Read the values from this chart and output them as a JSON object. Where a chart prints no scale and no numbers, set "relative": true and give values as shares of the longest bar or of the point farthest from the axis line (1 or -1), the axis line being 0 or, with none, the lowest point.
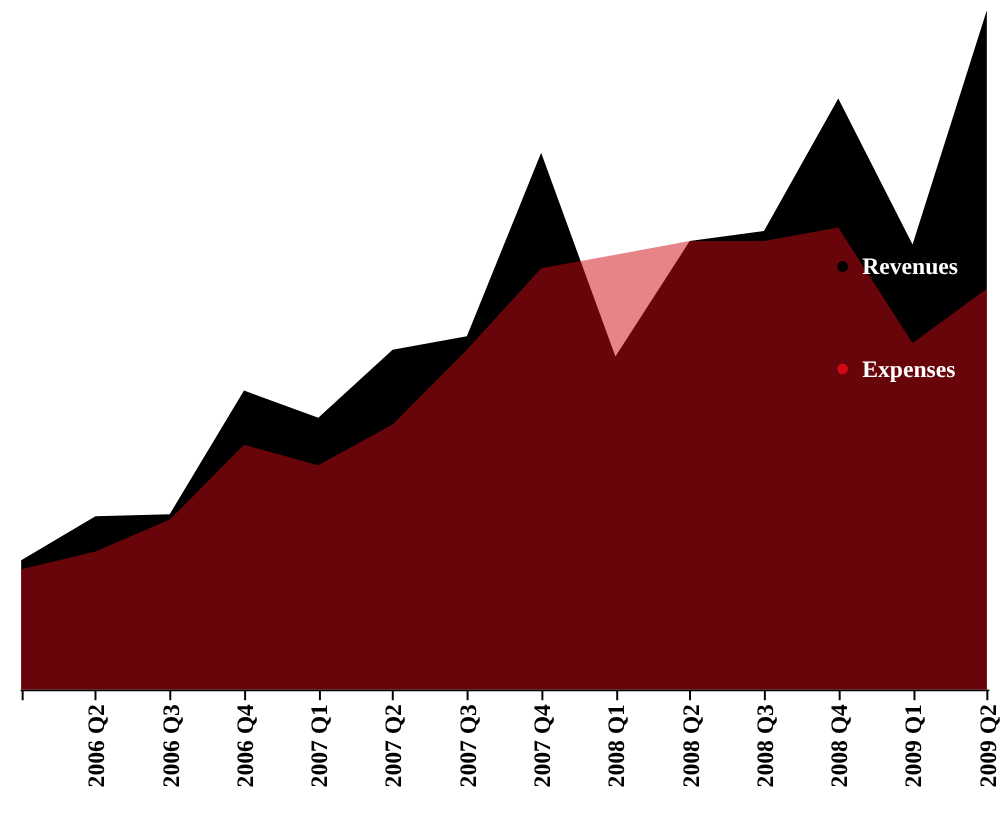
{
  "chart_data": {
    "type": "area",
    "relative": true,
    "legend": "right",
    "categories": [
      null,
      "2006 Q2",
      "2006 Q3",
      "2006 Q4",
      "2007 Q1",
      "2007 Q2",
      "2007 Q3",
      "2007 Q4",
      "2008 Q1",
      "2008 Q2",
      "2008 Q3",
      "2008 Q4",
      "2009 Q1",
      "2009 Q2"
    ],
    "series": [
      {
        "name": "Revenues",
        "color": "#000000",
        "values": [
          0.19,
          0.255,
          0.258,
          0.44,
          0.4,
          0.5,
          0.52,
          0.79,
          0.49,
          0.66,
          0.675,
          0.87,
          0.655,
          1.0
        ]
      },
      {
        "name": "Expenses",
        "color": "#d00a14",
        "values": [
          0.177,
          0.203,
          0.25,
          0.36,
          0.33,
          0.39,
          0.5,
          0.62,
          0.64,
          0.66,
          0.66,
          0.68,
          0.51,
          0.59
        ]
      }
    ]
  }
}
